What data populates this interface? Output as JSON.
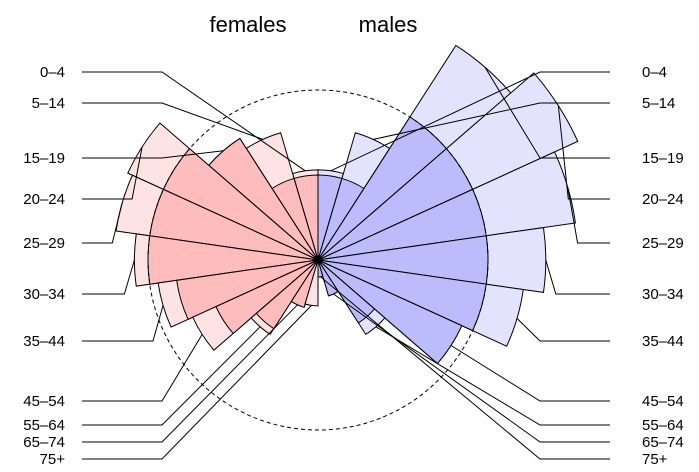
{
  "chart_data": {
    "type": "pyramid-pie",
    "headers": {
      "left": "females",
      "right": "males"
    },
    "age_groups": [
      "0–4",
      "5–14",
      "15–19",
      "20–24",
      "25–29",
      "30–34",
      "35–44",
      "45–54",
      "55–64",
      "65–74",
      "75+"
    ],
    "series": [
      {
        "name": "females",
        "side": "left",
        "fill_light": "#fde3e3",
        "fill_dark": "#ffbcbc",
        "radius_ratio": [
          0.53,
          0.78,
          0.85,
          1.23,
          1.2,
          1.08,
          0.95,
          0.81,
          0.52,
          0.29,
          0.27
        ],
        "inner_ratio": [
          0.5,
          0.5,
          0.85,
          1.0,
          1.0,
          1.0,
          0.84,
          0.66,
          0.48,
          0.29,
          0.0
        ]
      },
      {
        "name": "males",
        "side": "right",
        "fill_light": "#e3e3fd",
        "fill_dark": "#bcbcfd",
        "radius_ratio": [
          0.53,
          0.78,
          1.5,
          1.68,
          1.53,
          1.34,
          1.22,
          0.93,
          0.52,
          0.22,
          0.1
        ],
        "inner_ratio": [
          0.5,
          0.5,
          1.0,
          1.0,
          1.0,
          1.0,
          1.0,
          0.93,
          0.44,
          0.22,
          0.1
        ]
      }
    ],
    "reference_circle": 1.0,
    "colors": {
      "line": "#000000",
      "female_dark": "#ffbcbc",
      "female_light": "#fde3e3",
      "male_dark": "#bcbcfd",
      "male_light": "#e3e3fd"
    }
  }
}
